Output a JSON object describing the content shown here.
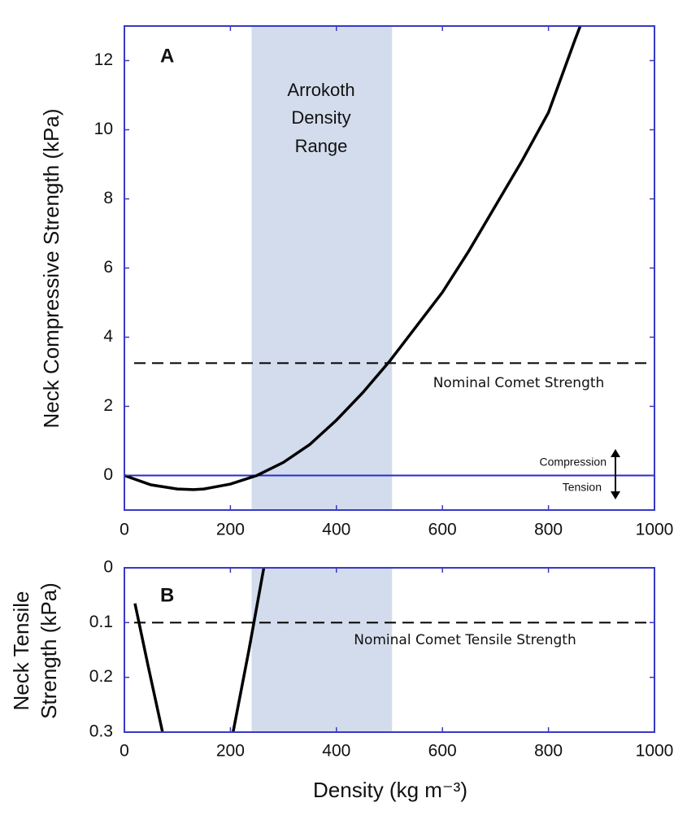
{
  "chart_data": [
    {
      "type": "line",
      "panel_label": "A",
      "ylabel": "Neck Compressive Strength (kPa)",
      "xlim": [
        0,
        1000
      ],
      "ylim": [
        -1,
        13
      ],
      "xticks": [
        0,
        200,
        400,
        600,
        800,
        1000
      ],
      "yticks": [
        0,
        2,
        4,
        6,
        8,
        10,
        12
      ],
      "axis_color": "#3838c8",
      "shade": {
        "range": [
          240,
          505
        ],
        "color": "#d3dcec",
        "label": [
          "Arrokoth",
          "Density",
          "Range"
        ]
      },
      "reference_line": {
        "value": 3.25,
        "label": "Nominal Comet Strength",
        "dashed": true,
        "color": "#000000"
      },
      "zero_line": {
        "value": 0,
        "color": "#2a2ad0",
        "labels": [
          "Compression",
          "Tension"
        ]
      },
      "series": [
        {
          "color": "#000000",
          "x": [
            0,
            50,
            100,
            130,
            150,
            200,
            250,
            300,
            350,
            400,
            450,
            500,
            550,
            600,
            650,
            700,
            750,
            800,
            850,
            860
          ],
          "values": [
            0,
            -0.27,
            -0.39,
            -0.41,
            -0.39,
            -0.25,
            0,
            0.38,
            0.9,
            1.6,
            2.4,
            3.3,
            4.3,
            5.3,
            6.5,
            7.8,
            9.1,
            10.5,
            12.6,
            13
          ]
        }
      ]
    },
    {
      "type": "line",
      "panel_label": "B",
      "ylabel": [
        "Neck Tensile",
        "Strength (kPa)"
      ],
      "xlabel": "Density (kg m⁻³)",
      "xlim": [
        0,
        1000
      ],
      "ylim": [
        0,
        0.3
      ],
      "y_inverted": true,
      "xticks": [
        0,
        200,
        400,
        600,
        800,
        1000
      ],
      "yticks": [
        0,
        0.1,
        0.2,
        0.3
      ],
      "axis_color": "#3838c8",
      "shade": {
        "range": [
          240,
          505
        ],
        "color": "#d3dcec"
      },
      "reference_line": {
        "value": 0.1,
        "label": "Nominal Comet Tensile Strength",
        "dashed": true,
        "color": "#000000"
      },
      "series": [
        {
          "color": "#000000",
          "x": [
            20,
            45,
            72,
            140,
            205,
            235,
            263
          ],
          "values": [
            0.065,
            0.18,
            0.3,
            null,
            0.3,
            0.15,
            0
          ]
        }
      ]
    }
  ]
}
